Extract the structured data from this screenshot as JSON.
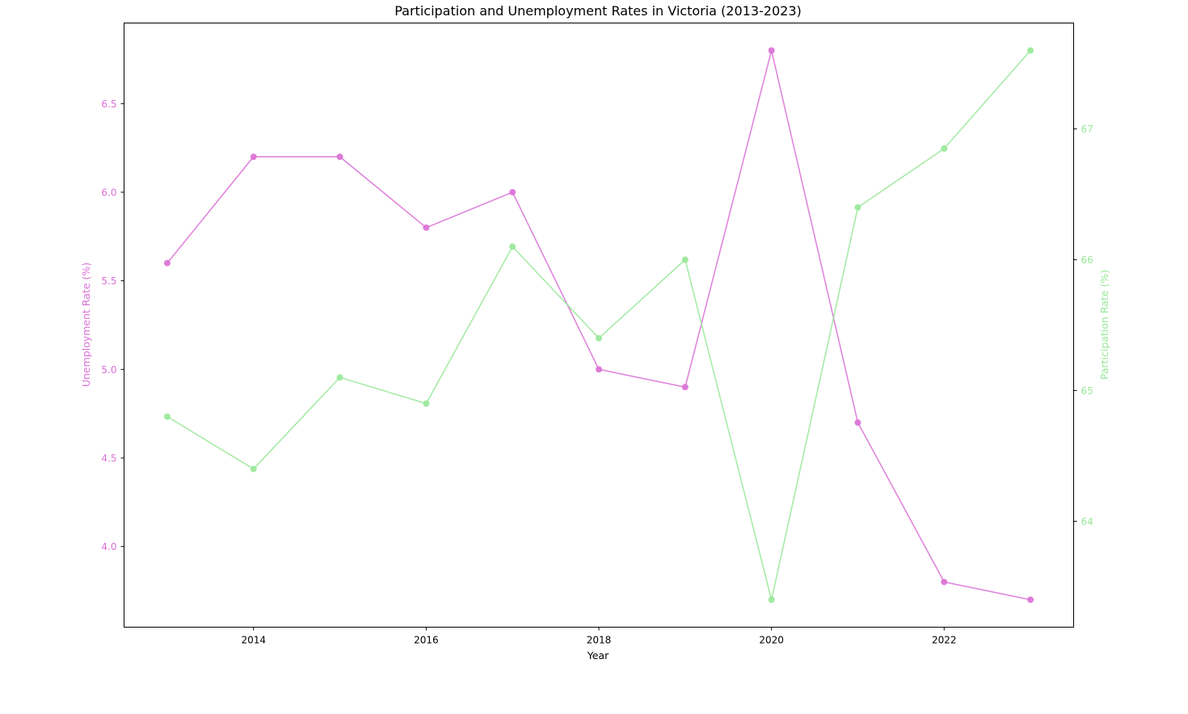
{
  "colors": {
    "unemployment": "#da70d6",
    "participation": "#98e898",
    "axis": "#000000"
  },
  "chart_data": {
    "type": "line",
    "title": "Participation and Unemployment Rates in Victoria (2013-2023)",
    "xlabel": "Year",
    "ylabel_left": "Unemployment Rate (%)",
    "ylabel_right": "Participation Rate (%)",
    "x": [
      2013,
      2014,
      2015,
      2016,
      2017,
      2018,
      2019,
      2020,
      2021,
      2022,
      2023
    ],
    "xlim": [
      2012.5,
      2023.5
    ],
    "xticks": [
      2014,
      2016,
      2018,
      2020,
      2022
    ],
    "x_tick_labels": [
      "2014",
      "2016",
      "2018",
      "2020",
      "2022"
    ],
    "left_axis": {
      "ylim": [
        3.545,
        6.955
      ],
      "ticks": [
        4.0,
        4.5,
        5.0,
        5.5,
        6.0,
        6.5
      ],
      "tick_labels": [
        "4.0",
        "4.5",
        "5.0",
        "5.5",
        "6.0",
        "6.5"
      ]
    },
    "right_axis": {
      "ylim": [
        63.19,
        67.81
      ],
      "ticks": [
        64,
        65,
        66,
        67
      ],
      "tick_labels": [
        "64",
        "65",
        "66",
        "67"
      ]
    },
    "series": [
      {
        "axis": "left",
        "color": "#da70d6",
        "values": [
          5.6,
          6.2,
          6.2,
          5.8,
          6.0,
          5.0,
          4.9,
          6.8,
          4.7,
          3.8,
          3.7
        ]
      },
      {
        "axis": "right",
        "color": "#98e898",
        "values": [
          64.8,
          64.4,
          65.1,
          64.9,
          66.1,
          65.4,
          66.0,
          63.4,
          66.4,
          66.85,
          67.6
        ]
      }
    ],
    "grid": false,
    "legend": "none"
  }
}
